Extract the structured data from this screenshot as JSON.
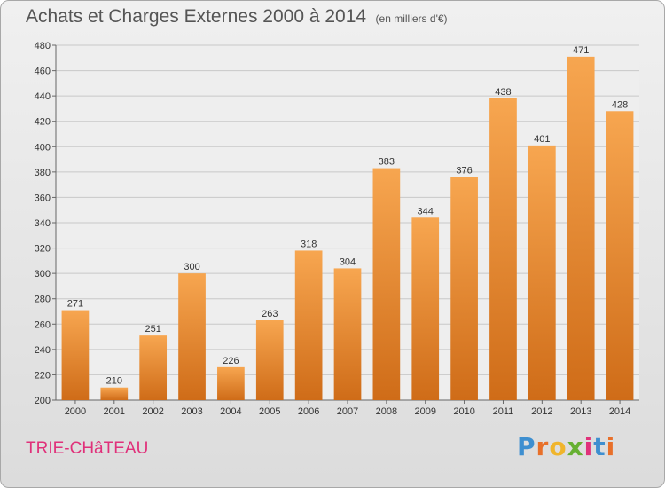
{
  "header": {
    "title": "Achats et Charges Externes 2000 à 2014",
    "unit": "(en milliers d'€)"
  },
  "footer": {
    "commune": "TRIE-CHâTEAU",
    "logo": "Proxiti"
  },
  "colors": {
    "bar_light": "#f7a650",
    "bar_dark": "#cf6c18",
    "commune_text": "#e0317a",
    "logo_letters": [
      "#3e8fd0",
      "#e8702a",
      "#f0b52c",
      "#66b032",
      "#e0317a",
      "#3e8fd0",
      "#e8702a"
    ]
  },
  "chart_data": {
    "type": "bar",
    "title": "Achats et Charges Externes 2000 à 2014",
    "subtitle": "(en milliers d'€)",
    "xlabel": "",
    "ylabel": "",
    "categories": [
      "2000",
      "2001",
      "2002",
      "2003",
      "2004",
      "2005",
      "2006",
      "2007",
      "2008",
      "2009",
      "2010",
      "2011",
      "2012",
      "2013",
      "2014"
    ],
    "values": [
      271,
      210,
      251,
      300,
      226,
      263,
      318,
      304,
      383,
      344,
      376,
      438,
      401,
      471,
      428
    ],
    "ylim": [
      200,
      480
    ],
    "yticks": [
      200,
      220,
      240,
      260,
      280,
      300,
      320,
      340,
      360,
      380,
      400,
      420,
      440,
      460,
      480
    ],
    "grid": true,
    "data_labels": true
  }
}
